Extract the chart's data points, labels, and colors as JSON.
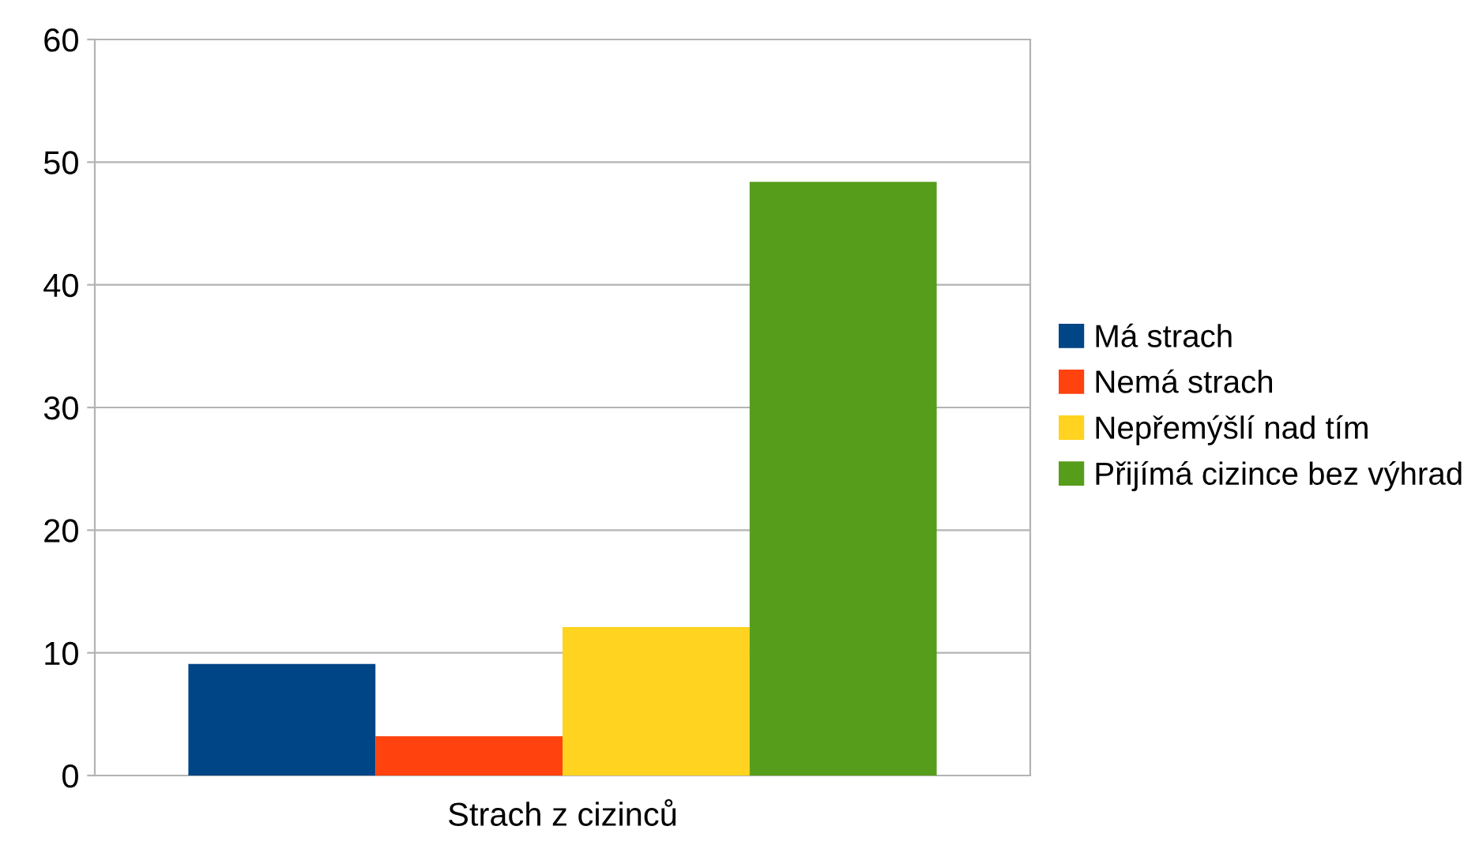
{
  "chart_data": {
    "type": "bar",
    "categories": [
      "Strach z cizinců"
    ],
    "series": [
      {
        "name": "Má strach",
        "color": "#004586",
        "values": [
          9.1
        ]
      },
      {
        "name": "Nemá strach",
        "color": "#ff420e",
        "values": [
          3.2
        ]
      },
      {
        "name": "Nepřemýšlí nad tím",
        "color": "#ffd320",
        "values": [
          12.1
        ]
      },
      {
        "name": "Přijímá cizince bez výhrad",
        "color": "#579d1c",
        "values": [
          48.4
        ]
      }
    ],
    "ylim": [
      0,
      60
    ],
    "yticks": [
      0,
      10,
      20,
      30,
      40,
      50,
      60
    ],
    "grid": "y",
    "legend": "right"
  }
}
